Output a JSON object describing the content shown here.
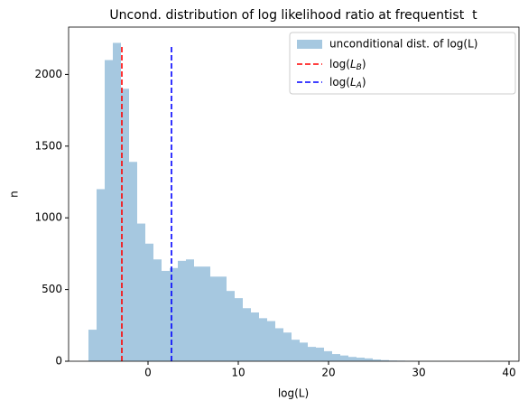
{
  "chart_data": {
    "type": "histogram",
    "title": "Uncond. distribution of log likelihood ratio at frequentist  t",
    "xlabel": "log(L)",
    "ylabel": "n",
    "bins": [
      -6.6,
      -5.7,
      -4.8,
      -3.9,
      -3.0,
      -2.1,
      -1.2,
      -0.3,
      0.6,
      1.5,
      2.4,
      3.3,
      4.2,
      5.1,
      6.0,
      6.9,
      7.8,
      8.7,
      9.6,
      10.5,
      11.4,
      12.3,
      13.2,
      14.1,
      15.0,
      15.9,
      16.8,
      17.7,
      18.6,
      19.5,
      20.4,
      21.3,
      22.2,
      23.1,
      24.0,
      24.9,
      25.8,
      26.7,
      27.6,
      28.5,
      29.4,
      30.3,
      31.2,
      32.1,
      33.0,
      33.9,
      34.8,
      35.7,
      36.6,
      37.5,
      38.4
    ],
    "series": [
      {
        "name": "unconditional dist. of log(L)",
        "color": "#a6c8e0",
        "values": [
          220,
          1200,
          2100,
          2220,
          1900,
          1390,
          960,
          820,
          710,
          630,
          650,
          700,
          710,
          660,
          660,
          590,
          590,
          490,
          440,
          370,
          340,
          300,
          280,
          230,
          200,
          150,
          130,
          100,
          95,
          70,
          50,
          40,
          30,
          25,
          20,
          12,
          8,
          5,
          4,
          3,
          2,
          2,
          1,
          1,
          1,
          0,
          0,
          0,
          0,
          1
        ]
      }
    ],
    "vlines": [
      {
        "name": "log(",
        "italic": "L",
        "subscript": "B",
        "suffix": ")",
        "color": "#ff0000",
        "x": -2.9,
        "ymin": 0,
        "ymax": 2200
      },
      {
        "name": "log(",
        "italic": "L",
        "subscript": "A",
        "suffix": ")",
        "color": "#0000ff",
        "x": 2.6,
        "ymin": 0,
        "ymax": 2200
      }
    ],
    "xlim": [
      -8.8,
      41.1
    ],
    "ylim": [
      0,
      2330
    ],
    "xticks": [
      0,
      10,
      20,
      30,
      40
    ],
    "yticks": [
      0,
      500,
      1000,
      1500,
      2000
    ],
    "legend": "upper right"
  }
}
